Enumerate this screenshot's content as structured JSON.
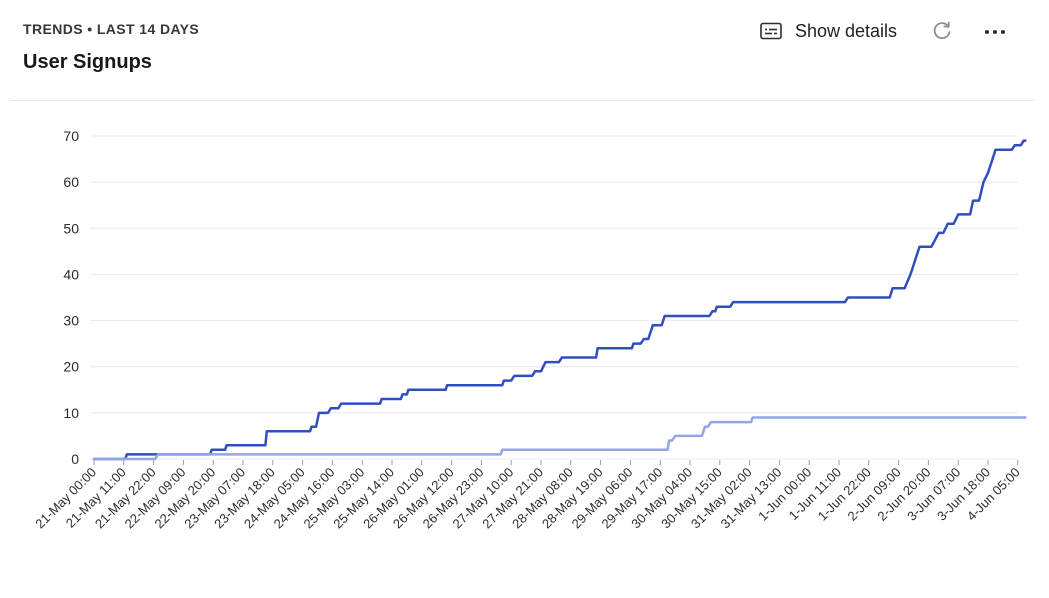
{
  "header": {
    "kicker": "TRENDS • LAST 14 DAYS",
    "title": "User Signups"
  },
  "actions": {
    "show_details_label": "Show details",
    "show_details_icon": "subtitles-icon",
    "refresh_icon": "refresh-icon",
    "more_icon": "more-horizontal-icon"
  },
  "chart_data": {
    "type": "line",
    "ylim": [
      0,
      70
    ],
    "y_ticks": [
      0,
      10,
      20,
      30,
      40,
      50,
      60,
      70
    ],
    "grid": true,
    "legend": "none",
    "x_labels": [
      "21-May 00:00",
      "21-May 11:00",
      "21-May 22:00",
      "22-May 09:00",
      "22-May 20:00",
      "23-May 07:00",
      "23-May 18:00",
      "24-May 05:00",
      "24-May 16:00",
      "25-May 03:00",
      "25-May 14:00",
      "26-May 01:00",
      "26-May 12:00",
      "26-May 23:00",
      "27-May 10:00",
      "27-May 21:00",
      "28-May 08:00",
      "28-May 19:00",
      "29-May 06:00",
      "29-May 17:00",
      "30-May 04:00",
      "30-May 15:00",
      "31-May 02:00",
      "31-May 13:00",
      "1-Jun 00:00",
      "1-Jun 11:00",
      "1-Jun 22:00",
      "2-Jun 09:00",
      "2-Jun 20:00",
      "3-Jun 07:00",
      "3-Jun 18:00",
      "4-Jun 05:00"
    ],
    "series": [
      {
        "color": "#2f4fbf",
        "points": [
          [
            0,
            0
          ],
          [
            1.05,
            0
          ],
          [
            1.1,
            1
          ],
          [
            3.9,
            1
          ],
          [
            3.95,
            2
          ],
          [
            4.4,
            2
          ],
          [
            4.45,
            3
          ],
          [
            5.75,
            3
          ],
          [
            5.8,
            6
          ],
          [
            7.25,
            6
          ],
          [
            7.3,
            7
          ],
          [
            7.45,
            7
          ],
          [
            7.55,
            10
          ],
          [
            7.85,
            10
          ],
          [
            7.95,
            11
          ],
          [
            8.2,
            11
          ],
          [
            8.3,
            12
          ],
          [
            9.6,
            12
          ],
          [
            9.65,
            13
          ],
          [
            10.3,
            13
          ],
          [
            10.35,
            14
          ],
          [
            10.5,
            14
          ],
          [
            10.55,
            15
          ],
          [
            11.8,
            15
          ],
          [
            11.85,
            16
          ],
          [
            13.7,
            16
          ],
          [
            13.75,
            17
          ],
          [
            14.0,
            17
          ],
          [
            14.1,
            18
          ],
          [
            14.7,
            18
          ],
          [
            14.8,
            19
          ],
          [
            15.0,
            19
          ],
          [
            15.15,
            21
          ],
          [
            15.6,
            21
          ],
          [
            15.7,
            22
          ],
          [
            16.85,
            22
          ],
          [
            16.9,
            24
          ],
          [
            18.05,
            24
          ],
          [
            18.1,
            25
          ],
          [
            18.35,
            25
          ],
          [
            18.45,
            26
          ],
          [
            18.6,
            26
          ],
          [
            18.75,
            29
          ],
          [
            19.05,
            29
          ],
          [
            19.15,
            31
          ],
          [
            20.65,
            31
          ],
          [
            20.75,
            32
          ],
          [
            20.85,
            32
          ],
          [
            20.9,
            33
          ],
          [
            21.35,
            33
          ],
          [
            21.45,
            34
          ],
          [
            25.2,
            34
          ],
          [
            25.3,
            35
          ],
          [
            26.7,
            35
          ],
          [
            26.8,
            37
          ],
          [
            27.2,
            37
          ],
          [
            27.4,
            40
          ],
          [
            27.55,
            43
          ],
          [
            27.7,
            46
          ],
          [
            28.1,
            46
          ],
          [
            28.35,
            49
          ],
          [
            28.5,
            49
          ],
          [
            28.65,
            51
          ],
          [
            28.85,
            51
          ],
          [
            29.0,
            53
          ],
          [
            29.4,
            53
          ],
          [
            29.5,
            56
          ],
          [
            29.7,
            56
          ],
          [
            29.85,
            60
          ],
          [
            30.0,
            62
          ],
          [
            30.15,
            65
          ],
          [
            30.25,
            67
          ],
          [
            30.8,
            67
          ],
          [
            30.9,
            68
          ],
          [
            31.1,
            68
          ],
          [
            31.2,
            69
          ],
          [
            31.25,
            69
          ]
        ]
      },
      {
        "color": "#92a5e8",
        "points": [
          [
            0,
            0
          ],
          [
            2.05,
            0
          ],
          [
            2.15,
            1
          ],
          [
            13.65,
            1
          ],
          [
            13.7,
            2
          ],
          [
            19.25,
            2
          ],
          [
            19.3,
            4
          ],
          [
            19.4,
            4
          ],
          [
            19.5,
            5
          ],
          [
            20.4,
            5
          ],
          [
            20.5,
            7
          ],
          [
            20.6,
            7
          ],
          [
            20.7,
            8
          ],
          [
            22.05,
            8
          ],
          [
            22.1,
            9
          ],
          [
            31.25,
            9
          ]
        ]
      }
    ]
  }
}
